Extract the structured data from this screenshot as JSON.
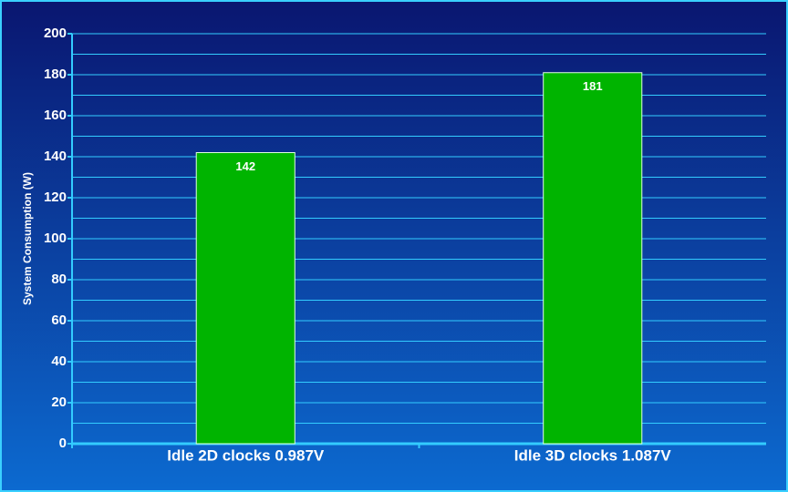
{
  "chart_data": {
    "type": "bar",
    "y_label": "System Consumption (W)",
    "categories": [
      "Idle 2D clocks 0.987V",
      "Idle 3D clocks 1.087V"
    ],
    "values": [
      142,
      181
    ],
    "color": "#00b400",
    "ylim": [
      0,
      200
    ],
    "yticks": [
      0,
      20,
      40,
      60,
      80,
      100,
      120,
      140,
      160,
      180,
      200
    ],
    "minor_yticks": [
      10,
      30,
      50,
      70,
      90,
      110,
      130,
      150,
      170,
      190
    ],
    "grid": true,
    "data_labels": true
  }
}
